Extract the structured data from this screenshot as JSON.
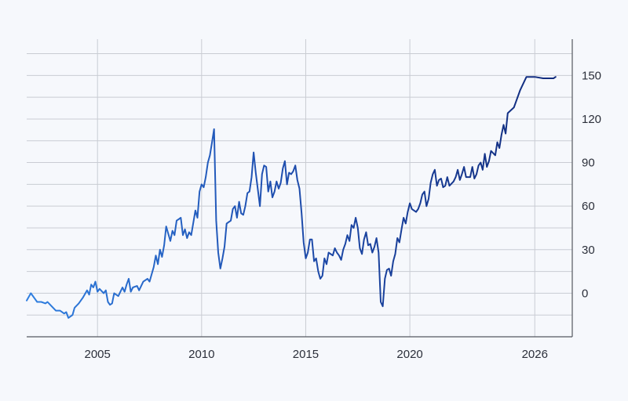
{
  "chart_data": {
    "type": "line",
    "title": "",
    "xlabel": "",
    "ylabel": "",
    "xlim": [
      2001.6,
      2027.8
    ],
    "ylim": [
      -30,
      175
    ],
    "grid": true,
    "x_ticks": [
      {
        "value": 2005,
        "label": "2005"
      },
      {
        "value": 2010,
        "label": "2010"
      },
      {
        "value": 2015,
        "label": "2015"
      },
      {
        "value": 2020,
        "label": "2020"
      },
      {
        "value": 2026,
        "label": "2026"
      }
    ],
    "y_ticks": [
      {
        "value": 150,
        "label": "150"
      },
      {
        "value": 120,
        "label": "120"
      },
      {
        "value": 90,
        "label": "90"
      },
      {
        "value": 60,
        "label": "60"
      },
      {
        "value": 30,
        "label": "30"
      },
      {
        "value": 0,
        "label": "0"
      }
    ],
    "y_axis_side": "right",
    "series": [
      {
        "color_start": "#2f7fe0",
        "color_end": "#10297a",
        "points": [
          [
            2001.6,
            -5
          ],
          [
            2001.8,
            0
          ],
          [
            2001.9,
            -2
          ],
          [
            2002.1,
            -6
          ],
          [
            2002.3,
            -6
          ],
          [
            2002.5,
            -7
          ],
          [
            2002.6,
            -6
          ],
          [
            2002.8,
            -9
          ],
          [
            2003.0,
            -12
          ],
          [
            2003.2,
            -12
          ],
          [
            2003.4,
            -14
          ],
          [
            2003.5,
            -13
          ],
          [
            2003.6,
            -17
          ],
          [
            2003.8,
            -15
          ],
          [
            2003.9,
            -10
          ],
          [
            2004.1,
            -7
          ],
          [
            2004.3,
            -3
          ],
          [
            2004.5,
            2
          ],
          [
            2004.6,
            -1
          ],
          [
            2004.7,
            6
          ],
          [
            2004.8,
            4
          ],
          [
            2004.9,
            8
          ],
          [
            2005.0,
            1
          ],
          [
            2005.1,
            3
          ],
          [
            2005.3,
            0
          ],
          [
            2005.4,
            2
          ],
          [
            2005.5,
            -6
          ],
          [
            2005.6,
            -8
          ],
          [
            2005.7,
            -7
          ],
          [
            2005.8,
            0
          ],
          [
            2006.0,
            -2
          ],
          [
            2006.2,
            4
          ],
          [
            2006.3,
            1
          ],
          [
            2006.4,
            6
          ],
          [
            2006.5,
            10
          ],
          [
            2006.6,
            1
          ],
          [
            2006.7,
            4
          ],
          [
            2006.9,
            5
          ],
          [
            2007.0,
            2
          ],
          [
            2007.2,
            8
          ],
          [
            2007.4,
            10
          ],
          [
            2007.5,
            8
          ],
          [
            2007.7,
            18
          ],
          [
            2007.8,
            26
          ],
          [
            2007.9,
            20
          ],
          [
            2008.0,
            30
          ],
          [
            2008.1,
            25
          ],
          [
            2008.2,
            33
          ],
          [
            2008.3,
            46
          ],
          [
            2008.5,
            36
          ],
          [
            2008.6,
            43
          ],
          [
            2008.7,
            40
          ],
          [
            2008.8,
            50
          ],
          [
            2008.9,
            51
          ],
          [
            2009.0,
            52
          ],
          [
            2009.1,
            40
          ],
          [
            2009.2,
            44
          ],
          [
            2009.3,
            38
          ],
          [
            2009.4,
            42
          ],
          [
            2009.5,
            40
          ],
          [
            2009.7,
            57
          ],
          [
            2009.8,
            52
          ],
          [
            2009.9,
            70
          ],
          [
            2010.0,
            75
          ],
          [
            2010.1,
            73
          ],
          [
            2010.2,
            80
          ],
          [
            2010.3,
            90
          ],
          [
            2010.4,
            95
          ],
          [
            2010.5,
            104
          ],
          [
            2010.6,
            113
          ],
          [
            2010.7,
            50
          ],
          [
            2010.8,
            28
          ],
          [
            2010.9,
            17
          ],
          [
            2011.0,
            24
          ],
          [
            2011.1,
            32
          ],
          [
            2011.2,
            48
          ],
          [
            2011.3,
            49
          ],
          [
            2011.4,
            50
          ],
          [
            2011.5,
            58
          ],
          [
            2011.6,
            60
          ],
          [
            2011.7,
            52
          ],
          [
            2011.8,
            63
          ],
          [
            2011.9,
            55
          ],
          [
            2012.0,
            54
          ],
          [
            2012.1,
            60
          ],
          [
            2012.2,
            69
          ],
          [
            2012.3,
            70
          ],
          [
            2012.4,
            80
          ],
          [
            2012.5,
            97
          ],
          [
            2012.6,
            83
          ],
          [
            2012.8,
            60
          ],
          [
            2012.9,
            82
          ],
          [
            2013.0,
            88
          ],
          [
            2013.1,
            87
          ],
          [
            2013.2,
            70
          ],
          [
            2013.3,
            77
          ],
          [
            2013.4,
            66
          ],
          [
            2013.5,
            70
          ],
          [
            2013.6,
            77
          ],
          [
            2013.7,
            72
          ],
          [
            2013.8,
            76
          ],
          [
            2013.9,
            86
          ],
          [
            2014.0,
            91
          ],
          [
            2014.1,
            75
          ],
          [
            2014.2,
            83
          ],
          [
            2014.3,
            82
          ],
          [
            2014.4,
            84
          ],
          [
            2014.5,
            88
          ],
          [
            2014.6,
            78
          ],
          [
            2014.7,
            72
          ],
          [
            2014.8,
            55
          ],
          [
            2014.9,
            35
          ],
          [
            2015.0,
            24
          ],
          [
            2015.1,
            28
          ],
          [
            2015.2,
            37
          ],
          [
            2015.3,
            37
          ],
          [
            2015.4,
            22
          ],
          [
            2015.5,
            24
          ],
          [
            2015.6,
            15
          ],
          [
            2015.7,
            10
          ],
          [
            2015.8,
            12
          ],
          [
            2015.9,
            24
          ],
          [
            2016.0,
            20
          ],
          [
            2016.1,
            28
          ],
          [
            2016.3,
            26
          ],
          [
            2016.4,
            31
          ],
          [
            2016.5,
            28
          ],
          [
            2016.6,
            26
          ],
          [
            2016.7,
            23
          ],
          [
            2016.8,
            30
          ],
          [
            2016.9,
            34
          ],
          [
            2017.0,
            40
          ],
          [
            2017.1,
            36
          ],
          [
            2017.2,
            47
          ],
          [
            2017.3,
            45
          ],
          [
            2017.4,
            52
          ],
          [
            2017.5,
            45
          ],
          [
            2017.6,
            31
          ],
          [
            2017.7,
            27
          ],
          [
            2017.8,
            37
          ],
          [
            2017.9,
            42
          ],
          [
            2018.0,
            33
          ],
          [
            2018.1,
            34
          ],
          [
            2018.2,
            28
          ],
          [
            2018.3,
            32
          ],
          [
            2018.4,
            38
          ],
          [
            2018.5,
            28
          ],
          [
            2018.6,
            -6
          ],
          [
            2018.7,
            -9
          ],
          [
            2018.8,
            10
          ],
          [
            2018.9,
            16
          ],
          [
            2019.0,
            17
          ],
          [
            2019.1,
            12
          ],
          [
            2019.2,
            22
          ],
          [
            2019.3,
            27
          ],
          [
            2019.4,
            38
          ],
          [
            2019.5,
            35
          ],
          [
            2019.6,
            44
          ],
          [
            2019.7,
            52
          ],
          [
            2019.8,
            48
          ],
          [
            2019.9,
            56
          ],
          [
            2020.0,
            62
          ],
          [
            2020.1,
            58
          ],
          [
            2020.3,
            56
          ],
          [
            2020.4,
            58
          ],
          [
            2020.5,
            62
          ],
          [
            2020.6,
            68
          ],
          [
            2020.7,
            70
          ],
          [
            2020.8,
            60
          ],
          [
            2020.9,
            65
          ],
          [
            2021.0,
            76
          ],
          [
            2021.1,
            82
          ],
          [
            2021.2,
            85
          ],
          [
            2021.3,
            74
          ],
          [
            2021.4,
            78
          ],
          [
            2021.5,
            79
          ],
          [
            2021.6,
            73
          ],
          [
            2021.7,
            74
          ],
          [
            2021.8,
            80
          ],
          [
            2021.9,
            74
          ],
          [
            2022.1,
            77
          ],
          [
            2022.2,
            80
          ],
          [
            2022.3,
            85
          ],
          [
            2022.4,
            78
          ],
          [
            2022.5,
            82
          ],
          [
            2022.6,
            87
          ],
          [
            2022.7,
            80
          ],
          [
            2022.9,
            80
          ],
          [
            2023.0,
            87
          ],
          [
            2023.1,
            79
          ],
          [
            2023.2,
            82
          ],
          [
            2023.3,
            88
          ],
          [
            2023.4,
            90
          ],
          [
            2023.5,
            85
          ],
          [
            2023.6,
            96
          ],
          [
            2023.7,
            87
          ],
          [
            2023.8,
            91
          ],
          [
            2023.9,
            98
          ],
          [
            2024.1,
            95
          ],
          [
            2024.2,
            104
          ],
          [
            2024.3,
            100
          ],
          [
            2024.4,
            109
          ],
          [
            2024.5,
            116
          ],
          [
            2024.6,
            110
          ],
          [
            2024.7,
            124
          ],
          [
            2025.0,
            128
          ],
          [
            2025.3,
            140
          ],
          [
            2025.6,
            149
          ],
          [
            2026.0,
            149
          ],
          [
            2026.4,
            148
          ],
          [
            2026.9,
            148
          ],
          [
            2027.0,
            149
          ]
        ]
      }
    ]
  }
}
